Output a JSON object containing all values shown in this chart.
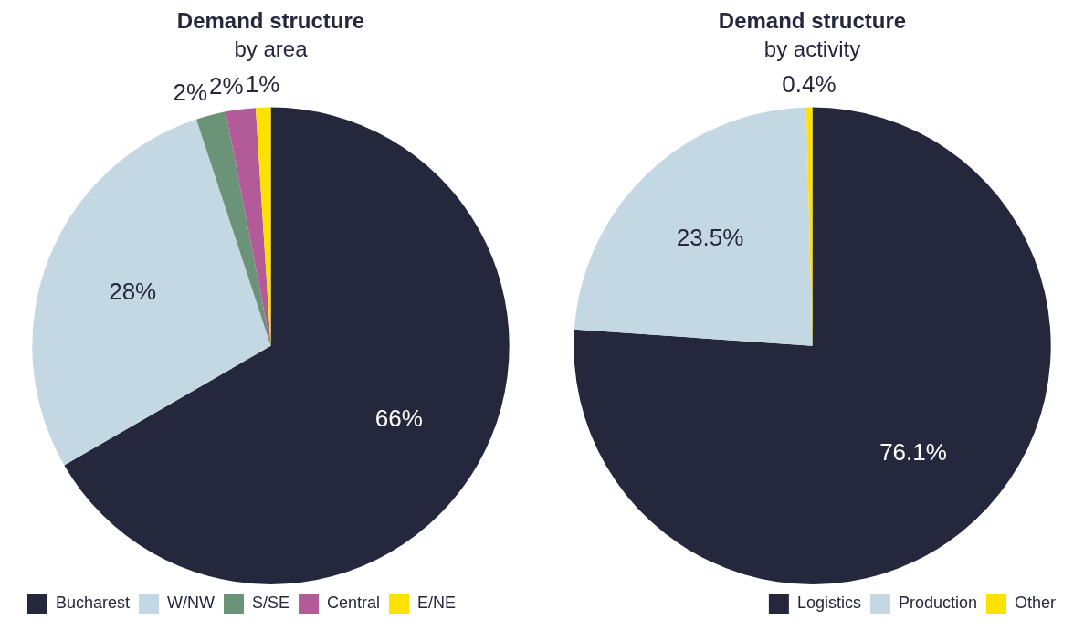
{
  "chart_data": [
    {
      "type": "pie",
      "title": "Demand structure",
      "subtitle": "by area",
      "categories": [
        "Bucharest",
        "W/NW",
        "S/SE",
        "Central",
        "E/NE"
      ],
      "values": [
        66,
        28,
        2,
        2,
        1
      ],
      "colors": [
        "#25283d",
        "#c4d8e3",
        "#6b9377",
        "#b35a98",
        "#ffe100"
      ],
      "value_labels": [
        "66%",
        "28%",
        "2%",
        "2%",
        "1%"
      ],
      "legend": "bottom left"
    },
    {
      "type": "pie",
      "title": "Demand structure",
      "subtitle": "by activity",
      "categories": [
        "Logistics",
        "Production",
        "Other"
      ],
      "values": [
        76.1,
        23.5,
        0.4
      ],
      "colors": [
        "#25283d",
        "#c4d8e3",
        "#ffe100"
      ],
      "value_labels": [
        "76.1%",
        "23.5%",
        "0.4%"
      ],
      "legend": "bottom right"
    }
  ]
}
